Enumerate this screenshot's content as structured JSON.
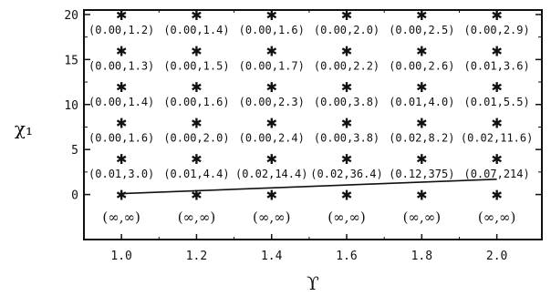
{
  "chart_data": {
    "type": "scatter",
    "xlabel": "ϒ",
    "ylabel": "χ₁",
    "xlim": [
      0.9,
      2.12
    ],
    "ylim": [
      -5,
      20.5
    ],
    "x_ticks": [
      "1.0",
      "1.2",
      "1.4",
      "1.6",
      "1.8",
      "2.0"
    ],
    "y_ticks": [
      "0",
      "5",
      "10",
      "15",
      "20"
    ],
    "grid": false,
    "legend": "none",
    "x": [
      1.0,
      1.2,
      1.4,
      1.6,
      1.8,
      2.0
    ],
    "rows": [
      {
        "y": 20,
        "marker": "✱",
        "labels": [
          "(0.00,1.2)",
          "(0.00,1.4)",
          "(0.00,1.6)",
          "(0.00,2.0)",
          "(0.00,2.5)",
          "(0.00,2.9)"
        ]
      },
      {
        "y": 16,
        "marker": "✱",
        "labels": [
          "(0.00,1.3)",
          "(0.00,1.5)",
          "(0.00,1.7)",
          "(0.00,2.2)",
          "(0.00,2.6)",
          "(0.01,3.6)"
        ]
      },
      {
        "y": 12,
        "marker": "✱",
        "labels": [
          "(0.00,1.4)",
          "(0.00,1.6)",
          "(0.00,2.3)",
          "(0.00,3.8)",
          "(0.01,4.0)",
          "(0.01,5.5)"
        ]
      },
      {
        "y": 8,
        "marker": "✱",
        "labels": [
          "(0.00,1.6)",
          "(0.00,2.0)",
          "(0.00,2.4)",
          "(0.00,3.8)",
          "(0.02,8.2)",
          "(0.02,11.6)"
        ]
      },
      {
        "y": 4,
        "marker": "✱",
        "labels": [
          "(0.01,3.0)",
          "(0.01,4.4)",
          "(0.02,14.4)",
          "(0.02,36.4)",
          "(0.12,375)",
          "(0.07,214)"
        ]
      },
      {
        "y": 0,
        "marker": "✱",
        "labels": [
          "(∞,∞)",
          "(∞,∞)",
          "(∞,∞)",
          "(∞,∞)",
          "(∞,∞)",
          "(∞,∞)"
        ]
      }
    ],
    "boundary_line": {
      "x": [
        1.0,
        2.0
      ],
      "y": [
        0.1,
        1.7
      ]
    }
  }
}
